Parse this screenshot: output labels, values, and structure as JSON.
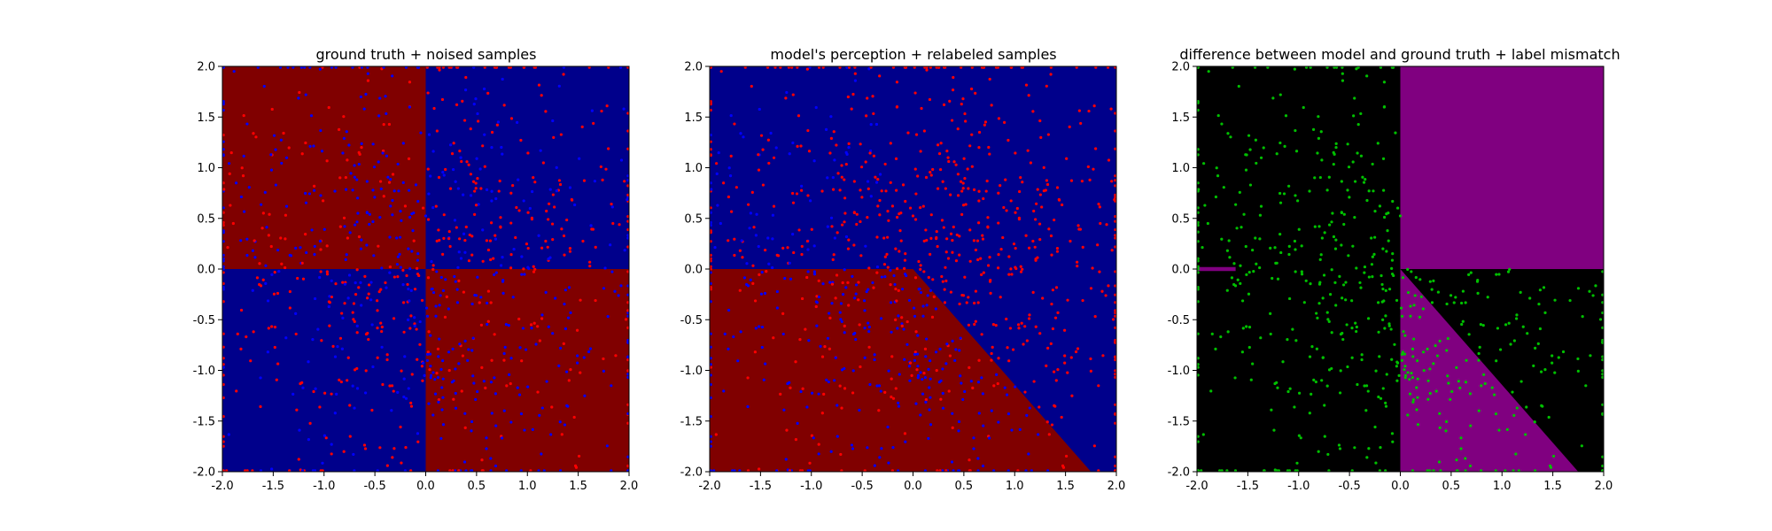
{
  "figure": {
    "background": "#ffffff"
  },
  "colors": {
    "dark_red": "#800000",
    "dark_blue": "#00008b",
    "black": "#000000",
    "purple": "#800080",
    "red_point": "#ff0000",
    "blue_point": "#0000ff",
    "green_point": "#00c000"
  },
  "chart_data": [
    {
      "type": "scatter",
      "title": "ground truth + noised samples",
      "xlim": [
        -2.0,
        2.0
      ],
      "ylim": [
        -2.0,
        2.0
      ],
      "x_ticks": [
        "-2.0",
        "-1.5",
        "-1.0",
        "-0.5",
        "0.0",
        "0.5",
        "1.0",
        "1.5",
        "2.0"
      ],
      "y_ticks": [
        "-2.0",
        "-1.5",
        "-1.0",
        "-0.5",
        "0.0",
        "0.5",
        "1.0",
        "1.5",
        "2.0"
      ],
      "grid": false,
      "background_regions": [
        {
          "polygon": [
            [
              -2,
              0
            ],
            [
              0,
              0
            ],
            [
              0,
              2
            ],
            [
              -2,
              2
            ]
          ],
          "color": "#800000"
        },
        {
          "polygon": [
            [
              0,
              0
            ],
            [
              2,
              0
            ],
            [
              2,
              2
            ],
            [
              0,
              2
            ]
          ],
          "color": "#00008b"
        },
        {
          "polygon": [
            [
              -2,
              -2
            ],
            [
              0,
              -2
            ],
            [
              0,
              0
            ],
            [
              -2,
              0
            ]
          ],
          "color": "#00008b"
        },
        {
          "polygon": [
            [
              0,
              -2
            ],
            [
              2,
              -2
            ],
            [
              2,
              0
            ],
            [
              0,
              0
            ]
          ],
          "color": "#800000"
        }
      ],
      "series": [
        {
          "color": "#ff0000",
          "rule": "labels_by_xy_sign",
          "when_positive_product": "#0000ff",
          "count": 1000
        }
      ]
    },
    {
      "type": "scatter",
      "title": "model's perception + relabeled samples",
      "xlim": [
        -2.0,
        2.0
      ],
      "ylim": [
        -2.0,
        2.0
      ],
      "x_ticks": [
        "-2.0",
        "-1.5",
        "-1.0",
        "-0.5",
        "0.0",
        "0.5",
        "1.0",
        "1.5",
        "2.0"
      ],
      "y_ticks": [
        "-2.0",
        "-1.5",
        "-1.0",
        "-0.5",
        "0.0",
        "0.5",
        "1.0",
        "1.5",
        "2.0"
      ],
      "grid": false,
      "background_regions": [
        {
          "polygon": [
            [
              -2,
              -2
            ],
            [
              2,
              -2
            ],
            [
              2,
              2
            ],
            [
              -2,
              2
            ]
          ],
          "color": "#00008b"
        },
        {
          "polygon": [
            [
              -2,
              0
            ],
            [
              0,
              0
            ],
            [
              1.75,
              -2
            ],
            [
              -2,
              -2
            ]
          ],
          "color": "#800000"
        }
      ],
      "series": [
        {
          "color": "#ff0000",
          "rule": "model_boundary",
          "boundary": [
            [
              -2,
              0
            ],
            [
              0,
              0
            ],
            [
              1.75,
              -2
            ]
          ],
          "count": 1000
        }
      ]
    },
    {
      "type": "scatter",
      "title": "difference between model and ground truth + label mismatch",
      "xlim": [
        -2.0,
        2.0
      ],
      "ylim": [
        -2.0,
        2.0
      ],
      "x_ticks": [
        "-2.0",
        "-1.5",
        "-1.0",
        "-0.5",
        "0.0",
        "0.5",
        "1.0",
        "1.5",
        "2.0"
      ],
      "y_ticks": [
        "-2.0",
        "-1.5",
        "-1.0",
        "-0.5",
        "0.0",
        "0.5",
        "1.0",
        "1.5",
        "2.0"
      ],
      "grid": false,
      "background_regions": [
        {
          "polygon": [
            [
              -2,
              -2
            ],
            [
              2,
              -2
            ],
            [
              2,
              2
            ],
            [
              -2,
              2
            ]
          ],
          "color": "#000000"
        },
        {
          "polygon": [
            [
              0,
              0
            ],
            [
              2,
              0
            ],
            [
              2,
              2
            ],
            [
              0,
              2
            ]
          ],
          "color": "#800080"
        },
        {
          "polygon": [
            [
              0,
              0
            ],
            [
              1.75,
              -2
            ],
            [
              0,
              -2
            ]
          ],
          "color": "#800080"
        },
        {
          "polygon": [
            [
              -2,
              -0.02
            ],
            [
              -1.62,
              -0.02
            ],
            [
              -1.62,
              0.02
            ],
            [
              -2,
              0.02
            ]
          ],
          "color": "#800080"
        }
      ],
      "series": [
        {
          "color": "#00c000",
          "rule": "mismatch_subset",
          "count": 620
        }
      ]
    }
  ]
}
